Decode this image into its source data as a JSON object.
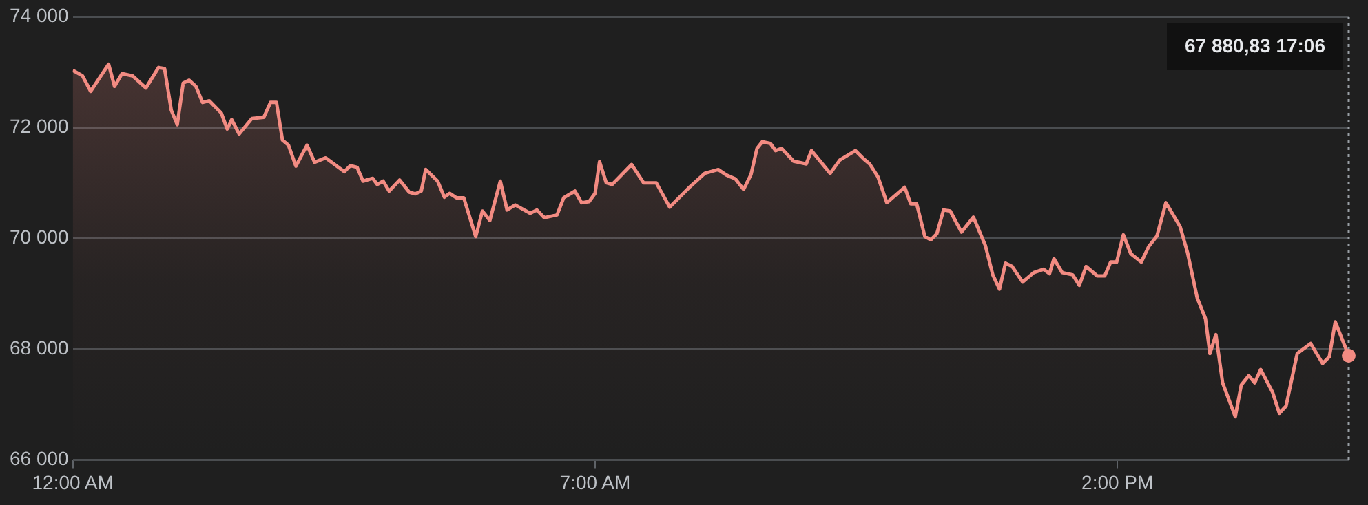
{
  "chart_data": {
    "type": "area",
    "x": [
      0,
      0.13,
      0.24,
      0.48,
      0.56,
      0.66,
      0.8,
      0.98,
      1.15,
      1.23,
      1.32,
      1.4,
      1.48,
      1.56,
      1.65,
      1.74,
      1.83,
      1.99,
      2.07,
      2.13,
      2.23,
      2.4,
      2.56,
      2.65,
      2.73,
      2.81,
      2.89,
      2.99,
      3.14,
      3.24,
      3.39,
      3.64,
      3.72,
      3.81,
      3.89,
      4.02,
      4.08,
      4.16,
      4.24,
      4.38,
      4.51,
      4.59,
      4.67,
      4.73,
      4.89,
      4.98,
      5.05,
      5.14,
      5.24,
      5.4,
      5.49,
      5.59,
      5.73,
      5.82,
      5.93,
      6.13,
      6.22,
      6.32,
      6.49,
      6.58,
      6.73,
      6.82,
      6.92,
      7,
      7.06,
      7.15,
      7.23,
      7.49,
      7.65,
      7.82,
      8,
      8.25,
      8.47,
      8.65,
      8.76,
      8.88,
      8.99,
      9.09,
      9.17,
      9.24,
      9.35,
      9.42,
      9.5,
      9.66,
      9.83,
      9.9,
      10.15,
      10.28,
      10.49,
      10.6,
      10.68,
      10.79,
      10.91,
      11.15,
      11.23,
      11.31,
      11.42,
      11.5,
      11.58,
      11.67,
      11.76,
      11.91,
      12.07,
      12.23,
      12.33,
      12.42,
      12.5,
      12.59,
      12.73,
      12.88,
      13.01,
      13.09,
      13.15,
      13.26,
      13.4,
      13.49,
      13.58,
      13.73,
      13.83,
      13.91,
      13.99,
      14.08,
      14.18,
      14.32,
      14.42,
      14.53,
      14.65,
      14.84,
      14.94,
      15.07,
      15.18,
      15.24,
      15.32,
      15.41,
      15.58,
      15.66,
      15.76,
      15.84,
      15.92,
      16.08,
      16.17,
      16.26,
      16.41,
      16.59,
      16.75,
      16.84,
      16.92,
      17.1
    ],
    "series": [
      {
        "color": "#f28b82",
        "values": [
          73030,
          72930,
          72650,
          73140,
          72740,
          72970,
          72930,
          72710,
          73080,
          73060,
          72310,
          72050,
          72800,
          72850,
          72740,
          72450,
          72480,
          72260,
          71970,
          72140,
          71880,
          72160,
          72180,
          72450,
          72450,
          71770,
          71680,
          71300,
          71680,
          71370,
          71450,
          71200,
          71310,
          71280,
          71030,
          71080,
          70970,
          71030,
          70850,
          71050,
          70830,
          70800,
          70850,
          71240,
          71030,
          70740,
          70810,
          70730,
          70730,
          70030,
          70490,
          70320,
          71030,
          70510,
          70600,
          70450,
          70510,
          70370,
          70420,
          70730,
          70850,
          70640,
          70660,
          70810,
          71380,
          71000,
          70970,
          71330,
          71000,
          71000,
          70560,
          70900,
          71170,
          71240,
          71140,
          71070,
          70880,
          71150,
          71620,
          71740,
          71710,
          71580,
          71620,
          71390,
          71340,
          71580,
          71170,
          71410,
          71580,
          71430,
          71340,
          71110,
          70640,
          70920,
          70620,
          70620,
          70030,
          69970,
          70080,
          70510,
          70490,
          70110,
          70380,
          69870,
          69340,
          69080,
          69550,
          69490,
          69210,
          69380,
          69440,
          69360,
          69630,
          69380,
          69340,
          69150,
          69490,
          69320,
          69320,
          69570,
          69570,
          70060,
          69720,
          69570,
          69850,
          70040,
          70640,
          70210,
          69740,
          68920,
          68550,
          67920,
          68260,
          67390,
          66780,
          67350,
          67520,
          67390,
          67630,
          67220,
          66840,
          66970,
          67920,
          68100,
          67740,
          67860,
          68490,
          67880
        ]
      }
    ],
    "xlim": [
      0,
      17.1
    ],
    "xticks": [
      {
        "value": 0,
        "label": "12:00 AM"
      },
      {
        "value": 7,
        "label": "7:00 AM"
      },
      {
        "value": 14,
        "label": "2:00 PM"
      }
    ],
    "ylim": [
      66000,
      74000
    ],
    "yticks": [
      {
        "value": 66000,
        "label": "66 000"
      },
      {
        "value": 68000,
        "label": "68 000"
      },
      {
        "value": 70000,
        "label": "70 000"
      },
      {
        "value": 72000,
        "label": "72 000"
      },
      {
        "value": 74000,
        "label": "74 000"
      }
    ],
    "grid": "y",
    "legend": false,
    "marker": "none",
    "line_style": "solid",
    "ref_lines": [
      {
        "axis": "x",
        "value": 17.1,
        "line_style": "dotted",
        "color": "#9aa0a6"
      }
    ],
    "annotations": [
      "67 880,83 17:06"
    ]
  }
}
